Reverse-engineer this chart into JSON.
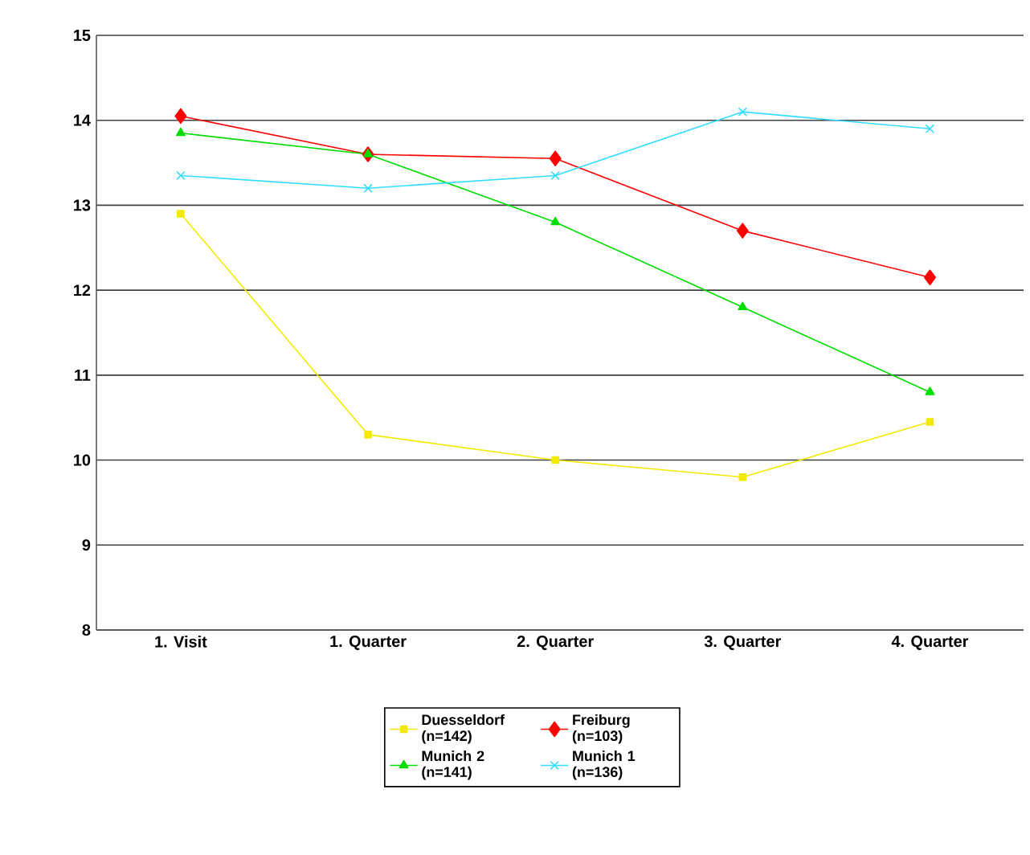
{
  "chart_data": {
    "type": "line",
    "categories": [
      "1. Visit",
      "1. Quarter",
      "2. Quarter",
      "3. Quarter",
      "4. Quarter"
    ],
    "series": [
      {
        "name": "Duesseldorf (n=142)",
        "color": "#f2ea00",
        "marker": "square",
        "values": [
          12.9,
          10.3,
          10.0,
          9.8,
          10.45
        ]
      },
      {
        "name": "Freiburg (n=103)",
        "color": "#ff0000",
        "marker": "diamond",
        "values": [
          14.05,
          13.6,
          13.55,
          12.7,
          12.15
        ]
      },
      {
        "name": "Munich 2 (n=141)",
        "color": "#00dd00",
        "marker": "triangle",
        "values": [
          13.85,
          13.6,
          12.8,
          11.8,
          10.8
        ]
      },
      {
        "name": "Munich 1 (n=136)",
        "color": "#33ddff",
        "marker": "cross",
        "values": [
          13.35,
          13.2,
          13.35,
          14.1,
          13.9
        ]
      }
    ],
    "ylim": [
      8,
      15
    ],
    "yticks": [
      8,
      9,
      10,
      11,
      12,
      13,
      14,
      15
    ],
    "grid": "y",
    "legend": "bottom",
    "line_style": "solid"
  }
}
